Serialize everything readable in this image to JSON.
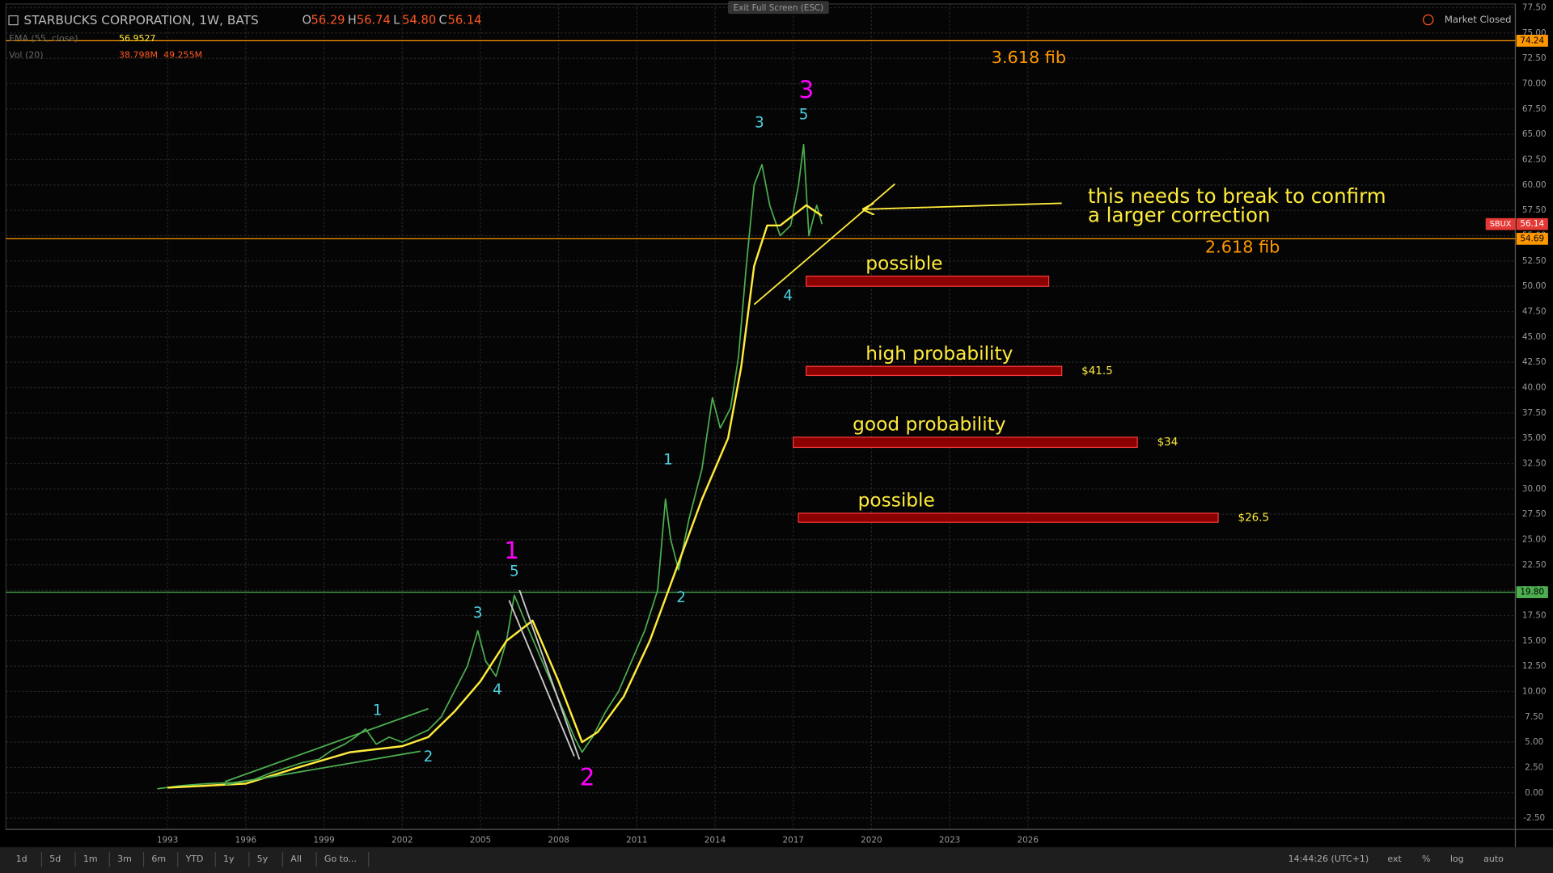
{
  "header": {
    "symbol": "STARBUCKS CORPORATION, 1W, BATS",
    "ohlc": [
      {
        "key": "O",
        "value": "56.29"
      },
      {
        "key": "H",
        "value": "56.74"
      },
      {
        "key": "L",
        "value": "54.80"
      },
      {
        "key": "C",
        "value": "56.14"
      }
    ],
    "exit": "Exit Full Screen (ESC)",
    "status": "Market Closed",
    "indicators": [
      {
        "name": "EMA (55, close)",
        "values": [
          "56.9527"
        ],
        "color": "#ffeb3b"
      },
      {
        "name": "Vol (20)",
        "values": [
          "38.798M",
          "49.255M"
        ],
        "color": "#ff5722"
      }
    ]
  },
  "chart_data": {
    "type": "line",
    "xlim": [
      1986.8,
      2044.7
    ],
    "xticks": [
      1993,
      1996,
      1999,
      2002,
      2005,
      2008,
      2011,
      2014,
      2017,
      2020,
      2023,
      2026
    ],
    "ylim": [
      -3.6,
      77.5
    ],
    "yticks": [
      {
        "value": -2.5,
        "label": "-2.50"
      },
      {
        "value": 0,
        "label": "0.00"
      },
      {
        "value": 2.5,
        "label": "2.50"
      },
      {
        "value": 5,
        "label": "5.00"
      },
      {
        "value": 7.5,
        "label": "7.50"
      },
      {
        "value": 10,
        "label": "10.00"
      },
      {
        "value": 12.5,
        "label": "12.50"
      },
      {
        "value": 15,
        "label": "15.00"
      },
      {
        "value": 17.5,
        "label": "17.50"
      },
      {
        "value": 20,
        "label": "20.00"
      },
      {
        "value": 22.5,
        "label": "22.50"
      },
      {
        "value": 25,
        "label": "25.00"
      },
      {
        "value": 27.5,
        "label": "27.50"
      },
      {
        "value": 30,
        "label": "30.00"
      },
      {
        "value": 32.5,
        "label": "32.50"
      },
      {
        "value": 35,
        "label": "35.00"
      },
      {
        "value": 37.5,
        "label": "37.50"
      },
      {
        "value": 40,
        "label": "40.00"
      },
      {
        "value": 42.5,
        "label": "42.50"
      },
      {
        "value": 45,
        "label": "45.00"
      },
      {
        "value": 47.5,
        "label": "47.50"
      },
      {
        "value": 50,
        "label": "50.00"
      },
      {
        "value": 52.5,
        "label": "52.50"
      },
      {
        "value": 55,
        "label": "55.00"
      },
      {
        "value": 57.5,
        "label": "57.50"
      },
      {
        "value": 60,
        "label": "60.00"
      },
      {
        "value": 62.5,
        "label": "62.50"
      },
      {
        "value": 65,
        "label": "65.00"
      },
      {
        "value": 67.5,
        "label": "67.50"
      },
      {
        "value": 70,
        "label": "70.00"
      },
      {
        "value": 72.5,
        "label": "72.50"
      },
      {
        "value": 75,
        "label": "75.00"
      },
      {
        "value": 77.5,
        "label": "77.50"
      }
    ],
    "grid": true,
    "series": [
      {
        "name": "SBUX",
        "color": "#4caf50",
        "x": [
          1992.6,
          1993.5,
          1994.5,
          1995.5,
          1996.3,
          1997,
          1997.6,
          1998.2,
          1998.8,
          1999.3,
          1999.8,
          2000.2,
          2000.6,
          2001,
          2001.5,
          2002,
          2002.5,
          2003,
          2003.5,
          2004,
          2004.5,
          2004.9,
          2005.2,
          2005.6,
          2006,
          2006.3,
          2006.7,
          2007.2,
          2007.7,
          2008.2,
          2008.6,
          2008.9,
          2009.3,
          2009.8,
          2010.3,
          2010.8,
          2011.3,
          2011.8,
          2012.1,
          2012.3,
          2012.6,
          2013,
          2013.5,
          2013.9,
          2014.2,
          2014.6,
          2014.9,
          2015.2,
          2015.5,
          2015.8,
          2016.1,
          2016.5,
          2016.9,
          2017.2,
          2017.4,
          2017.6,
          2017.9,
          2018.1
        ],
        "values": [
          0.4,
          0.7,
          0.9,
          1.0,
          1.3,
          2.0,
          2.5,
          3.0,
          3.3,
          4.2,
          4.8,
          5.5,
          6.3,
          4.8,
          5.5,
          5.0,
          5.6,
          6.2,
          7.5,
          10,
          12.5,
          16,
          13,
          11.5,
          15,
          19.5,
          17,
          14,
          11,
          8,
          5.5,
          4,
          5.5,
          8,
          10,
          13,
          16,
          20,
          29,
          25,
          22,
          27,
          32,
          39,
          36,
          38,
          43,
          52,
          60,
          62,
          58,
          55,
          56,
          60,
          64,
          55,
          58,
          56.14
        ]
      },
      {
        "name": "EMA (55, close)",
        "color": "#ffeb3b",
        "x": [
          1993,
          1996,
          1998,
          2000,
          2002,
          2003,
          2004,
          2005,
          2006,
          2007,
          2008,
          2008.9,
          2009.5,
          2010.5,
          2011.5,
          2012.5,
          2013.5,
          2014.5,
          2015,
          2015.5,
          2016,
          2016.5,
          2017,
          2017.5,
          2018.1
        ],
        "values": [
          0.5,
          0.9,
          2.5,
          4,
          4.6,
          5.5,
          8,
          11,
          15,
          17,
          11,
          5,
          6,
          9.5,
          15,
          22,
          29,
          35,
          42,
          52,
          56,
          56,
          57,
          58,
          56.95
        ]
      }
    ],
    "price_levels": [
      {
        "value": 74.24,
        "label": "74.24",
        "color": "#ff9800"
      },
      {
        "value": 54.69,
        "label": "54.69",
        "color": "#ff9800"
      },
      {
        "value": 19.8,
        "label": "19.80",
        "color": "#4caf50"
      }
    ],
    "last_price": {
      "name": "SBUX",
      "value": 56.14,
      "label": "56.14",
      "color": "#e53935"
    },
    "zones": [
      {
        "label": "possible",
        "x": [
          2017.5,
          2026.8
        ],
        "y": [
          50.0,
          51.0
        ]
      },
      {
        "label": "high probability",
        "price_label": "$41.5",
        "x": [
          2017.5,
          2027.3
        ],
        "y": [
          41.2,
          42.1
        ]
      },
      {
        "label": "good probability",
        "price_label": "$34",
        "x": [
          2017.0,
          2030.2
        ],
        "y": [
          34.1,
          35.1
        ]
      },
      {
        "label": "possible",
        "price_label": "$26.5",
        "x": [
          2017.2,
          2033.3
        ],
        "y": [
          26.7,
          27.6
        ]
      }
    ],
    "trend_lines": [
      {
        "color": "#ffeb3b",
        "x": [
          2015.5,
          2020.9
        ],
        "y": [
          48.2,
          60.1
        ]
      },
      {
        "color": "#ffeb3b",
        "x": [
          2027.3,
          2019.7
        ],
        "y": [
          58.2,
          57.6
        ],
        "arrow": true
      },
      {
        "color": "#4caf50",
        "x": [
          1995.2,
          2003.0
        ],
        "y": [
          1.1,
          8.3
        ]
      },
      {
        "color": "#4caf50",
        "x": [
          1995.2,
          2002.7
        ],
        "y": [
          0.8,
          4.1
        ]
      },
      {
        "color": "#cccccc",
        "x": [
          2006.5,
          2008.8
        ],
        "y": [
          20.0,
          3.3
        ]
      },
      {
        "color": "#cccccc",
        "x": [
          2006.1,
          2008.6
        ],
        "y": [
          19.0,
          3.6
        ]
      }
    ],
    "annotations": [
      {
        "text": "3.618 fib",
        "x": 2024.6,
        "y": 72.5,
        "color": "#ff9800"
      },
      {
        "text": "2.618 fib",
        "x": 2032.8,
        "y": 53.8,
        "color": "#ff9800"
      },
      {
        "text": "this needs to break to confirm",
        "x": 2028.3,
        "y": 58.8,
        "color": "#ffeb3b"
      },
      {
        "text": "a larger correction",
        "x": 2028.3,
        "y": 56.9,
        "color": "#ffeb3b"
      },
      {
        "text": "1",
        "x": 2006.2,
        "y": 23.8,
        "color": "#ff00ff"
      },
      {
        "text": "2",
        "x": 2009.1,
        "y": 1.4,
        "color": "#ff00ff"
      },
      {
        "text": "3",
        "x": 2017.5,
        "y": 69.3,
        "color": "#ff00ff"
      },
      {
        "text": "1",
        "x": 2001.05,
        "y": 8.1,
        "color": "#4dd0e1"
      },
      {
        "text": "2",
        "x": 2003.0,
        "y": 3.5,
        "color": "#4dd0e1"
      },
      {
        "text": "3",
        "x": 2004.9,
        "y": 17.7,
        "color": "#4dd0e1"
      },
      {
        "text": "4",
        "x": 2005.65,
        "y": 10.1,
        "color": "#4dd0e1"
      },
      {
        "text": "5",
        "x": 2006.3,
        "y": 21.8,
        "color": "#4dd0e1"
      },
      {
        "text": "1",
        "x": 2012.2,
        "y": 32.8,
        "color": "#4dd0e1"
      },
      {
        "text": "2",
        "x": 2012.7,
        "y": 19.2,
        "color": "#4dd0e1"
      },
      {
        "text": "3",
        "x": 2015.7,
        "y": 66.1,
        "color": "#4dd0e1"
      },
      {
        "text": "4",
        "x": 2016.8,
        "y": 49.0,
        "color": "#4dd0e1"
      },
      {
        "text": "5",
        "x": 2017.4,
        "y": 66.9,
        "color": "#4dd0e1"
      }
    ]
  },
  "toolbar": {
    "ranges": [
      "1d",
      "5d",
      "1m",
      "3m",
      "6m",
      "YTD",
      "1y",
      "5y",
      "All",
      "Go to..."
    ],
    "time": "14:44:26 (UTC+1)",
    "options": [
      "ext",
      "%",
      "log",
      "auto"
    ]
  }
}
